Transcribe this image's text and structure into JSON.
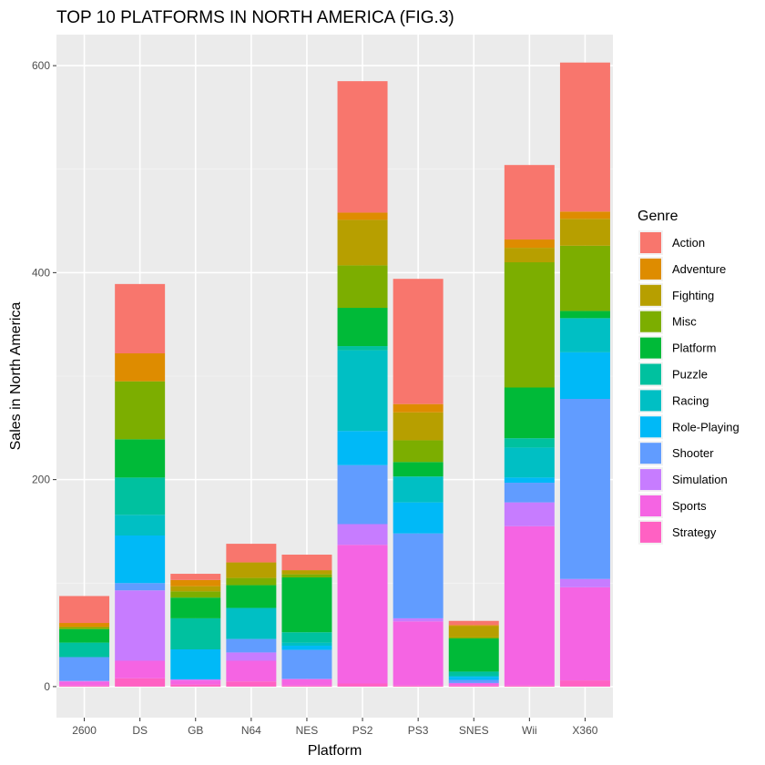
{
  "chart_data": {
    "type": "bar",
    "stacked": true,
    "title": "TOP 10 PLATFORMS IN NORTH AMERICA (FIG.3)",
    "xlabel": "Platform",
    "ylabel": "Sales in North America",
    "ylim": [
      -30,
      630
    ],
    "yticks": [
      0,
      200,
      400,
      600
    ],
    "grid": true,
    "legend_position": "right",
    "legend_title": "Genre",
    "categories": [
      "2600",
      "DS",
      "GB",
      "N64",
      "NES",
      "PS2",
      "PS3",
      "SNES",
      "Wii",
      "X360"
    ],
    "series": [
      {
        "name": "Strategy",
        "color": "#FF61C3",
        "values": [
          1,
          8,
          2,
          5,
          1,
          3,
          1,
          1,
          1,
          6
        ]
      },
      {
        "name": "Sports",
        "color": "#F564E3",
        "values": [
          4,
          17,
          4,
          20,
          6,
          134,
          62,
          2,
          154,
          90
        ]
      },
      {
        "name": "Simulation",
        "color": "#C77CFF",
        "values": [
          0.5,
          68,
          1,
          8,
          0.5,
          20,
          3,
          0.5,
          23,
          8
        ]
      },
      {
        "name": "Shooter",
        "color": "#619CFF",
        "values": [
          23,
          7,
          0,
          13,
          28,
          57,
          82,
          3,
          19,
          174
        ]
      },
      {
        "name": "Role-Playing",
        "color": "#00B9F7",
        "values": [
          0,
          46,
          29,
          0,
          4,
          33,
          30,
          3,
          5,
          45
        ]
      },
      {
        "name": "Racing",
        "color": "#00BFC4",
        "values": [
          0,
          20,
          0,
          30,
          3,
          78,
          25,
          1,
          29,
          33
        ]
      },
      {
        "name": "Puzzle",
        "color": "#00C19F",
        "values": [
          14,
          36,
          30,
          0,
          10,
          4,
          0,
          4,
          9,
          0
        ]
      },
      {
        "name": "Platform",
        "color": "#00BA38",
        "values": [
          13,
          37,
          20,
          22,
          53,
          37,
          14,
          32,
          49,
          7
        ]
      },
      {
        "name": "Misc",
        "color": "#7CAE00",
        "values": [
          2,
          56,
          6,
          7,
          3,
          41,
          21,
          1,
          121,
          63
        ]
      },
      {
        "name": "Fighting",
        "color": "#B79F00",
        "values": [
          0,
          0,
          5,
          15,
          4,
          44,
          27,
          11,
          14,
          26
        ]
      },
      {
        "name": "Adventure",
        "color": "#DE8C00",
        "values": [
          4,
          27,
          6,
          0,
          0,
          7,
          8,
          1,
          8,
          7
        ]
      },
      {
        "name": "Action",
        "color": "#F8766D",
        "values": [
          26,
          67,
          6,
          18,
          15,
          127,
          121,
          4,
          72,
          144
        ]
      }
    ],
    "legend_order": [
      "Action",
      "Adventure",
      "Fighting",
      "Misc",
      "Platform",
      "Puzzle",
      "Racing",
      "Role-Playing",
      "Shooter",
      "Simulation",
      "Sports",
      "Strategy"
    ]
  }
}
